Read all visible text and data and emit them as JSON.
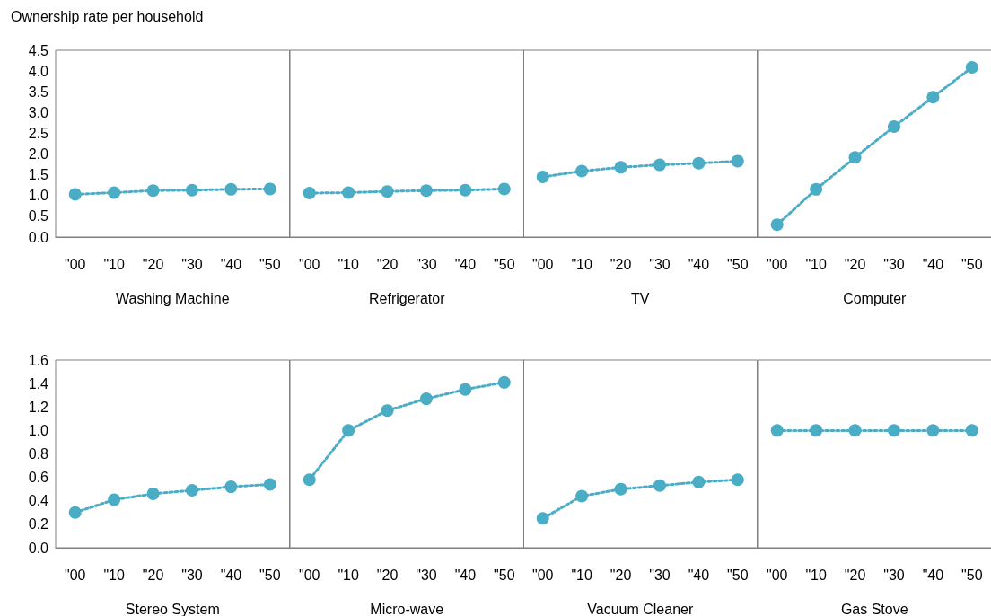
{
  "chart_data": [
    {
      "type": "line",
      "ylabel": "Ownership rate per household",
      "xlabel": "Washing Machine",
      "categories": [
        "\"00",
        "\"10",
        "\"20",
        "\"30",
        "\"40",
        "\"50"
      ],
      "values": [
        1.03,
        1.07,
        1.12,
        1.13,
        1.15,
        1.16
      ],
      "color": "#4bacc6",
      "ylim": [
        0,
        4.5
      ],
      "yticks": [
        {
          "value": 0,
          "label": "0.0"
        },
        {
          "value": 0.5,
          "label": "0.5"
        },
        {
          "value": 1,
          "label": "1.0"
        },
        {
          "value": 1.5,
          "label": "1.5"
        },
        {
          "value": 2,
          "label": "2.0"
        },
        {
          "value": 2.5,
          "label": "2.5"
        },
        {
          "value": 3,
          "label": "3.0"
        },
        {
          "value": 3.5,
          "label": "3.5"
        },
        {
          "value": 4,
          "label": "4.0"
        },
        {
          "value": 4.5,
          "label": "4.5"
        }
      ],
      "grid": false,
      "marker": "circle",
      "line_style": "dotted"
    },
    {
      "type": "line",
      "xlabel": "Refrigerator",
      "categories": [
        "\"00",
        "\"10",
        "\"20",
        "\"30",
        "\"40",
        "\"50"
      ],
      "values": [
        1.06,
        1.07,
        1.1,
        1.12,
        1.13,
        1.16
      ],
      "color": "#4bacc6",
      "ylim": [
        0,
        4.5
      ],
      "tick_labels": "x",
      "grid": false,
      "marker": "circle",
      "line_style": "dotted"
    },
    {
      "type": "line",
      "xlabel": "TV",
      "categories": [
        "\"00",
        "\"10",
        "\"20",
        "\"30",
        "\"40",
        "\"50"
      ],
      "values": [
        1.45,
        1.59,
        1.68,
        1.74,
        1.78,
        1.83
      ],
      "color": "#4bacc6",
      "ylim": [
        0,
        4.5
      ],
      "tick_labels": "x",
      "grid": false,
      "marker": "circle",
      "line_style": "dotted"
    },
    {
      "type": "line",
      "xlabel": "Computer",
      "categories": [
        "\"00",
        "\"10",
        "\"20",
        "\"30",
        "\"40",
        "\"50"
      ],
      "values": [
        0.3,
        1.15,
        1.92,
        2.66,
        3.37,
        4.09
      ],
      "color": "#4bacc6",
      "ylim": [
        0,
        4.5
      ],
      "tick_labels": "x",
      "grid": false,
      "marker": "circle",
      "line_style": "dotted"
    },
    {
      "type": "line",
      "xlabel": "Stereo System",
      "categories": [
        "\"00",
        "\"10",
        "\"20",
        "\"30",
        "\"40",
        "\"50"
      ],
      "values": [
        0.3,
        0.41,
        0.46,
        0.49,
        0.52,
        0.54
      ],
      "color": "#4bacc6",
      "ylim": [
        0,
        1.6
      ],
      "yticks": [
        {
          "value": 0,
          "label": "0.0"
        },
        {
          "value": 0.2,
          "label": "0.2"
        },
        {
          "value": 0.4,
          "label": "0.4"
        },
        {
          "value": 0.6,
          "label": "0.6"
        },
        {
          "value": 0.8,
          "label": "0.8"
        },
        {
          "value": 1,
          "label": "1.0"
        },
        {
          "value": 1.2,
          "label": "1.2"
        },
        {
          "value": 1.4,
          "label": "1.4"
        },
        {
          "value": 1.6,
          "label": "1.6"
        }
      ],
      "grid": false,
      "marker": "circle",
      "line_style": "dotted"
    },
    {
      "type": "line",
      "xlabel": "Micro-wave",
      "categories": [
        "\"00",
        "\"10",
        "\"20",
        "\"30",
        "\"40",
        "\"50"
      ],
      "values": [
        0.58,
        1.0,
        1.17,
        1.27,
        1.35,
        1.41
      ],
      "color": "#4bacc6",
      "ylim": [
        0,
        1.6
      ],
      "tick_labels": "x",
      "grid": false,
      "marker": "circle",
      "line_style": "dotted"
    },
    {
      "type": "line",
      "xlabel": "Vacuum Cleaner",
      "categories": [
        "\"00",
        "\"10",
        "\"20",
        "\"30",
        "\"40",
        "\"50"
      ],
      "values": [
        0.25,
        0.44,
        0.5,
        0.53,
        0.56,
        0.58
      ],
      "color": "#4bacc6",
      "ylim": [
        0,
        1.6
      ],
      "tick_labels": "x",
      "grid": false,
      "marker": "circle",
      "line_style": "dotted"
    },
    {
      "type": "line",
      "xlabel": "Gas Stove",
      "categories": [
        "\"00",
        "\"10",
        "\"20",
        "\"30",
        "\"40",
        "\"50"
      ],
      "values": [
        1.0,
        1.0,
        1.0,
        1.0,
        1.0,
        1.0
      ],
      "color": "#4bacc6",
      "ylim": [
        0,
        1.6
      ],
      "tick_labels": "x",
      "grid": false,
      "marker": "circle",
      "line_style": "dotted"
    }
  ]
}
